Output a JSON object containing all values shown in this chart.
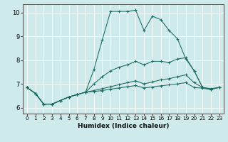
{
  "xlabel": "Humidex (Indice chaleur)",
  "bg_color": "#ceeaea",
  "line_color": "#1a6b5e",
  "grid_color": "#ffffff",
  "xlim": [
    -0.5,
    23.5
  ],
  "ylim": [
    5.75,
    10.35
  ],
  "yticks": [
    6,
    7,
    8,
    9,
    10
  ],
  "xticks": [
    0,
    1,
    2,
    3,
    4,
    5,
    6,
    7,
    8,
    9,
    10,
    11,
    12,
    13,
    14,
    15,
    16,
    17,
    18,
    19,
    20,
    21,
    22,
    23
  ],
  "line1_x": [
    0,
    1,
    2,
    3,
    4,
    5,
    6,
    7,
    8,
    9,
    10,
    11,
    12,
    13,
    14,
    15,
    16,
    17,
    18,
    19,
    20,
    21
  ],
  "line1_y": [
    6.85,
    6.6,
    6.15,
    6.15,
    6.3,
    6.45,
    6.55,
    6.65,
    7.6,
    8.85,
    10.05,
    10.05,
    10.05,
    10.1,
    9.25,
    9.85,
    9.7,
    9.25,
    8.9,
    8.05,
    7.55,
    6.85
  ],
  "line2_x": [
    0,
    1,
    2,
    3,
    4,
    5,
    6,
    7,
    8,
    9,
    10,
    11,
    12,
    13,
    14,
    15,
    16,
    17,
    18,
    19,
    20,
    21,
    22,
    23
  ],
  "line2_y": [
    6.85,
    6.6,
    6.15,
    6.15,
    6.3,
    6.45,
    6.55,
    6.65,
    7.0,
    7.3,
    7.55,
    7.7,
    7.8,
    7.95,
    7.8,
    7.95,
    7.95,
    7.9,
    8.05,
    8.1,
    7.55,
    6.85,
    6.8,
    6.85
  ],
  "line3_x": [
    0,
    1,
    2,
    3,
    4,
    5,
    6,
    7,
    8,
    9,
    10,
    11,
    12,
    13,
    14,
    15,
    16,
    17,
    18,
    19,
    20,
    21,
    22,
    23
  ],
  "line3_y": [
    6.85,
    6.6,
    6.15,
    6.15,
    6.3,
    6.45,
    6.55,
    6.65,
    6.72,
    6.8,
    6.88,
    6.97,
    7.05,
    7.13,
    7.0,
    7.08,
    7.17,
    7.22,
    7.3,
    7.38,
    7.05,
    6.85,
    6.78,
    6.85
  ],
  "line4_x": [
    0,
    1,
    2,
    3,
    4,
    5,
    6,
    7,
    8,
    9,
    10,
    11,
    12,
    13,
    14,
    15,
    16,
    17,
    18,
    19,
    20,
    21,
    22,
    23
  ],
  "line4_y": [
    6.85,
    6.6,
    6.15,
    6.15,
    6.3,
    6.45,
    6.55,
    6.65,
    6.68,
    6.72,
    6.78,
    6.83,
    6.88,
    6.93,
    6.83,
    6.87,
    6.92,
    6.96,
    7.0,
    7.05,
    6.85,
    6.82,
    6.76,
    6.85
  ]
}
